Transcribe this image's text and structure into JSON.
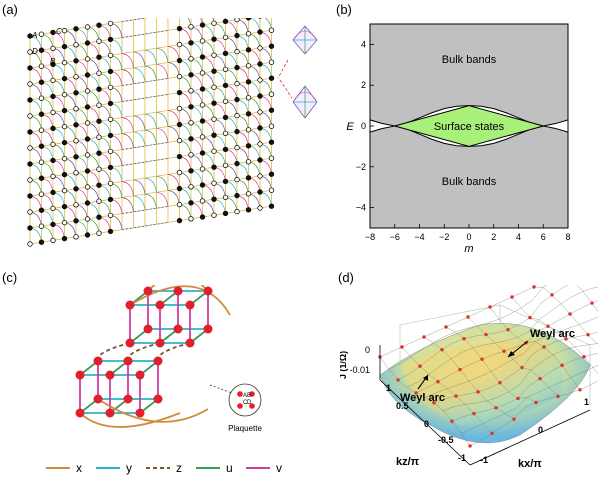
{
  "panels": {
    "a": {
      "label": "(a)",
      "corner_labels": [
        "A",
        "B",
        "C",
        "D"
      ]
    },
    "b": {
      "label": "(b)"
    },
    "c": {
      "label": "(c)",
      "plaquette_label": "Plaquette",
      "plaquette_nodes": [
        "A",
        "B",
        "C",
        "D"
      ],
      "legend": [
        {
          "label": "x",
          "color": "#d08a3a",
          "dash": false
        },
        {
          "label": "y",
          "color": "#2bb3c8",
          "dash": false
        },
        {
          "label": "z",
          "color": "#7a5a2a",
          "dash": true
        },
        {
          "label": "u",
          "color": "#3a9a5a",
          "dash": false
        },
        {
          "label": "v",
          "color": "#d43aa0",
          "dash": false
        }
      ]
    },
    "d": {
      "label": "(d)",
      "weyl_arc_1": "Weyl arc",
      "weyl_arc_2": "Weyl arc",
      "z_axis_label": "J (1/Ω)",
      "z_ticks": [
        "0",
        "-0.01"
      ],
      "kz_label": "kz/π",
      "kx_label": "kx/π",
      "kz_ticks": [
        "1",
        "0.5",
        "0",
        "-0.5",
        "-1"
      ],
      "kx_ticks": [
        "1",
        "0",
        "-1"
      ]
    }
  },
  "chart_data": {
    "type": "area",
    "title": "",
    "xlabel": "m",
    "ylabel": "E",
    "xlim": [
      -8,
      8
    ],
    "ylim": [
      -5,
      5
    ],
    "xticks": [
      "−8",
      "−6",
      "−4",
      "−2",
      "0",
      "2",
      "4",
      "6",
      "8"
    ],
    "yticks": [
      "4",
      "2",
      "0",
      "−2",
      "−4"
    ],
    "xtick_values": [
      -8,
      -6,
      -4,
      -2,
      0,
      2,
      4,
      6,
      8
    ],
    "ytick_values": [
      4,
      2,
      0,
      -2,
      -4
    ],
    "regions": [
      {
        "name": "Bulk bands",
        "label": "Bulk bands",
        "color": "#c0c0c0",
        "side": "upper"
      },
      {
        "name": "Bulk bands",
        "label": "Bulk bands",
        "color": "#c0c0c0",
        "side": "lower"
      },
      {
        "name": "Surface states",
        "label": "Surface states",
        "color": "#a8f07a"
      }
    ],
    "bulk_edge": {
      "m": [
        -8,
        -7,
        -6,
        -5,
        -4,
        -3,
        -2,
        -1,
        0,
        1,
        2,
        3,
        4,
        5,
        6,
        7,
        8
      ],
      "E": [
        0.3,
        0.12,
        0.0,
        0.15,
        0.4,
        0.65,
        0.85,
        0.97,
        1.0,
        0.97,
        0.85,
        0.65,
        0.4,
        0.15,
        0.0,
        0.12,
        0.3
      ]
    },
    "surface_states": {
      "m": [
        -6,
        0,
        6
      ],
      "E_upper": [
        0,
        1.0,
        0
      ],
      "E_lower": [
        0,
        -1.0,
        0
      ]
    }
  }
}
